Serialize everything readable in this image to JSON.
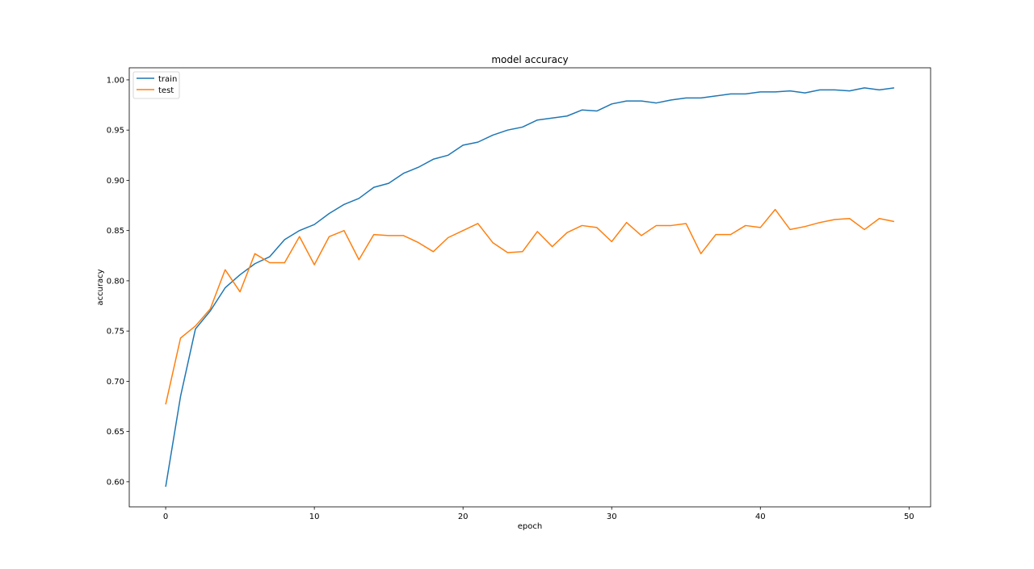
{
  "chart_data": {
    "type": "line",
    "title": "model accuracy",
    "xlabel": "epoch",
    "ylabel": "accuracy",
    "xlim": [
      -2.45,
      51.45
    ],
    "ylim": [
      0.575,
      1.012
    ],
    "xticks": [
      0,
      10,
      20,
      30,
      40,
      50
    ],
    "yticks": [
      0.6,
      0.65,
      0.7,
      0.75,
      0.8,
      0.85,
      0.9,
      0.95,
      1.0
    ],
    "xtick_labels": [
      "0",
      "10",
      "20",
      "30",
      "40",
      "50"
    ],
    "ytick_labels": [
      "0.60",
      "0.65",
      "0.70",
      "0.75",
      "0.80",
      "0.85",
      "0.90",
      "0.95",
      "1.00"
    ],
    "grid": false,
    "legend_position": "top-left",
    "series": [
      {
        "name": "train",
        "color": "#1f77b4",
        "values": [
          0.595,
          0.685,
          0.752,
          0.77,
          0.793,
          0.806,
          0.817,
          0.824,
          0.841,
          0.85,
          0.856,
          0.867,
          0.876,
          0.882,
          0.893,
          0.897,
          0.907,
          0.913,
          0.921,
          0.925,
          0.935,
          0.938,
          0.945,
          0.95,
          0.953,
          0.96,
          0.962,
          0.964,
          0.97,
          0.969,
          0.976,
          0.979,
          0.979,
          0.977,
          0.98,
          0.982,
          0.982,
          0.984,
          0.986,
          0.986,
          0.988,
          0.988,
          0.989,
          0.987,
          0.99,
          0.99,
          0.989,
          0.992,
          0.99,
          0.992
        ]
      },
      {
        "name": "test",
        "color": "#ff7f0e",
        "values": [
          0.677,
          0.743,
          0.755,
          0.772,
          0.811,
          0.789,
          0.827,
          0.818,
          0.818,
          0.844,
          0.816,
          0.844,
          0.85,
          0.821,
          0.846,
          0.845,
          0.845,
          0.838,
          0.829,
          0.843,
          0.85,
          0.857,
          0.838,
          0.828,
          0.829,
          0.849,
          0.834,
          0.848,
          0.855,
          0.853,
          0.839,
          0.858,
          0.845,
          0.855,
          0.855,
          0.857,
          0.827,
          0.846,
          0.846,
          0.855,
          0.853,
          0.871,
          0.851,
          0.854,
          0.858,
          0.861,
          0.862,
          0.851,
          0.862,
          0.859
        ]
      }
    ]
  }
}
